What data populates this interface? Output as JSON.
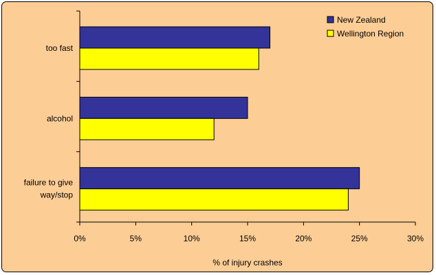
{
  "chart_data": {
    "type": "bar",
    "orientation": "horizontal",
    "categories": [
      "too fast",
      "alcohol",
      "failure to give way/stop"
    ],
    "category_lines": [
      [
        "too fast"
      ],
      [
        "alcohol"
      ],
      [
        "failure to give",
        "way/stop"
      ]
    ],
    "series": [
      {
        "name": "New Zealand",
        "color": "#333399",
        "values": [
          17,
          15,
          25
        ]
      },
      {
        "name": "Wellington Region",
        "color": "#ffff00",
        "values": [
          16,
          12,
          24
        ]
      }
    ],
    "xlabel": "% of injury crashes",
    "ylabel": "",
    "title": "",
    "xlim": [
      0,
      30
    ],
    "xticks": [
      "0%",
      "5%",
      "10%",
      "15%",
      "20%",
      "25%",
      "30%"
    ],
    "grid": false,
    "legend_position": "top-right",
    "background_color": "#fdcd96",
    "plot_area_color": "#fdcd96"
  }
}
